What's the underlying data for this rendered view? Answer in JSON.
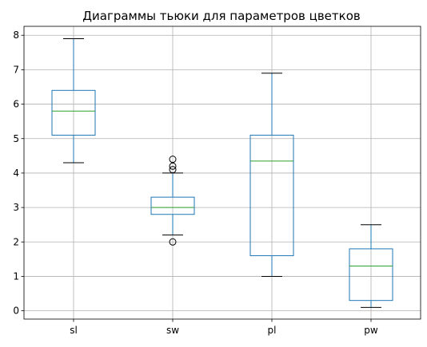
{
  "chart_data": {
    "type": "boxplot",
    "title": "Диаграммы тьюки для параметров цветков",
    "xlabel": "",
    "ylabel": "",
    "ylim": [
      -0.24,
      8.26
    ],
    "yticks": [
      0,
      1,
      2,
      3,
      4,
      5,
      6,
      7,
      8
    ],
    "grid": true,
    "colors": {
      "box": "#1f77b4",
      "median": "#2ca02c",
      "whisker": "#1f77b4",
      "cap": "#000000",
      "flier": "#000000",
      "grid": "#b0b0b0"
    },
    "categories": [
      "sl",
      "sw",
      "pl",
      "pw"
    ],
    "boxes": [
      {
        "label": "sl",
        "whislo": 4.3,
        "q1": 5.1,
        "med": 5.8,
        "q3": 6.4,
        "whishi": 7.9,
        "fliers": []
      },
      {
        "label": "sw",
        "whislo": 2.2,
        "q1": 2.8,
        "med": 3.0,
        "q3": 3.3,
        "whishi": 4.0,
        "fliers": [
          4.4,
          4.2,
          4.1,
          2.0
        ]
      },
      {
        "label": "pl",
        "whislo": 1.0,
        "q1": 1.6,
        "med": 4.35,
        "q3": 5.1,
        "whishi": 6.9,
        "fliers": []
      },
      {
        "label": "pw",
        "whislo": 0.1,
        "q1": 0.3,
        "med": 1.3,
        "q3": 1.8,
        "whishi": 2.5,
        "fliers": []
      }
    ]
  }
}
